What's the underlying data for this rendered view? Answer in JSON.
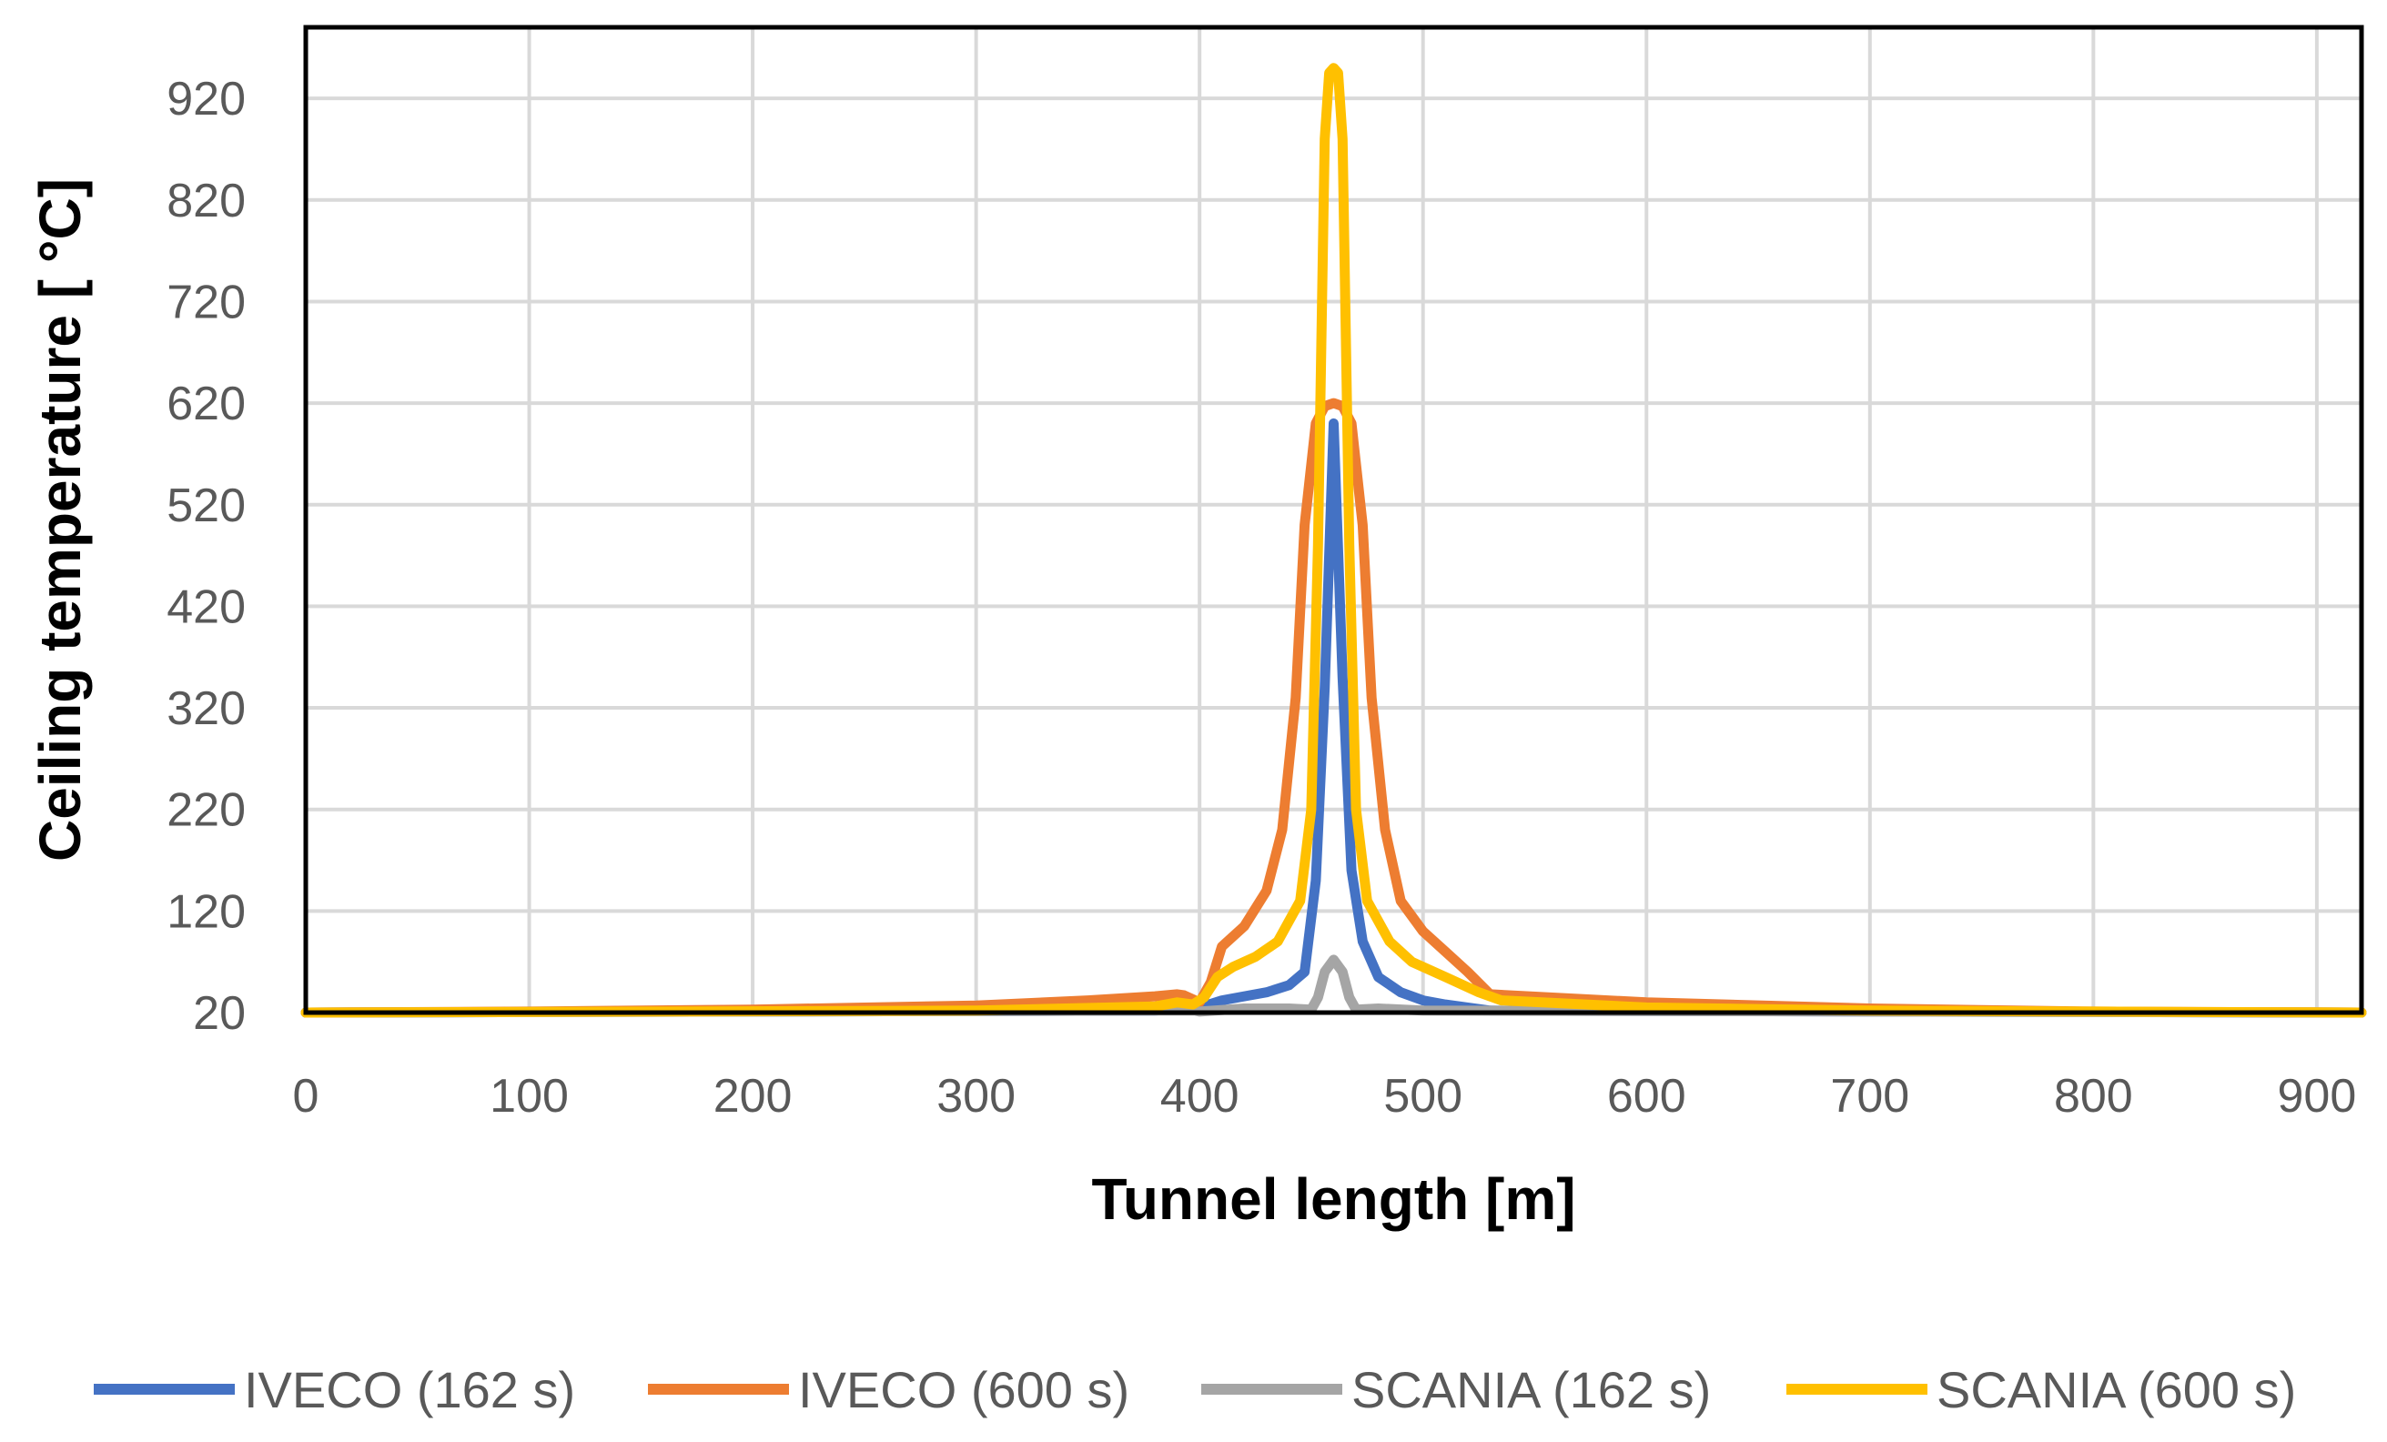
{
  "chart_data": {
    "type": "line",
    "title": "",
    "xlabel": "Tunnel length [m]",
    "ylabel": "Ceiling temperature [ °C]",
    "xlim": [
      0,
      920
    ],
    "ylim": [
      20,
      990
    ],
    "xticks": [
      0,
      100,
      200,
      300,
      400,
      500,
      600,
      700,
      800,
      900
    ],
    "yticks": [
      20,
      120,
      220,
      320,
      420,
      520,
      620,
      720,
      820,
      920
    ],
    "grid": true,
    "legend_position": "bottom",
    "series": [
      {
        "name": "IVECO (162 s)",
        "color": "#4472C4",
        "x": [
          0,
          380,
          400,
          410,
          420,
          430,
          440,
          447,
          452,
          456,
          460,
          464,
          468,
          473,
          480,
          490,
          500,
          510,
          520,
          530,
          920
        ],
        "y": [
          20,
          22,
          25,
          32,
          36,
          40,
          47,
          60,
          150,
          340,
          600,
          350,
          160,
          90,
          55,
          40,
          32,
          28,
          25,
          22,
          20
        ]
      },
      {
        "name": "IVECO (600 s)",
        "color": "#ED7D31",
        "x": [
          0,
          100,
          200,
          300,
          350,
          380,
          390,
          393,
          400,
          405,
          410,
          420,
          430,
          437,
          443,
          447,
          452,
          456,
          460,
          464,
          468,
          473,
          477,
          483,
          490,
          500,
          510,
          520,
          530,
          600,
          700,
          800,
          920
        ],
        "y": [
          20,
          21,
          23,
          27,
          32,
          36,
          38,
          37,
          30,
          50,
          85,
          105,
          140,
          200,
          330,
          500,
          600,
          617,
          620,
          617,
          600,
          500,
          330,
          200,
          130,
          100,
          80,
          60,
          38,
          30,
          24,
          21,
          20
        ]
      },
      {
        "name": "SCANIA (162 s)",
        "color": "#A5A5A5",
        "x": [
          0,
          380,
          398,
          400,
          420,
          440,
          450,
          453,
          456,
          460,
          464,
          467,
          470,
          480,
          500,
          920
        ],
        "y": [
          20,
          22,
          22,
          21,
          24,
          24,
          23,
          35,
          60,
          72,
          60,
          35,
          23,
          24,
          22,
          20
        ]
      },
      {
        "name": "SCANIA (600 s)",
        "color": "#FFC000",
        "x": [
          0,
          300,
          380,
          390,
          397,
          402,
          408,
          415,
          425,
          435,
          445,
          450,
          453,
          456,
          458,
          460,
          462,
          464,
          467,
          470,
          475,
          485,
          495,
          510,
          525,
          535,
          600,
          700,
          800,
          920
        ],
        "y": [
          20,
          22,
          26,
          30,
          28,
          35,
          55,
          65,
          75,
          90,
          130,
          220,
          480,
          880,
          945,
          950,
          945,
          880,
          480,
          220,
          130,
          90,
          70,
          55,
          40,
          32,
          25,
          22,
          21,
          20
        ]
      }
    ]
  }
}
